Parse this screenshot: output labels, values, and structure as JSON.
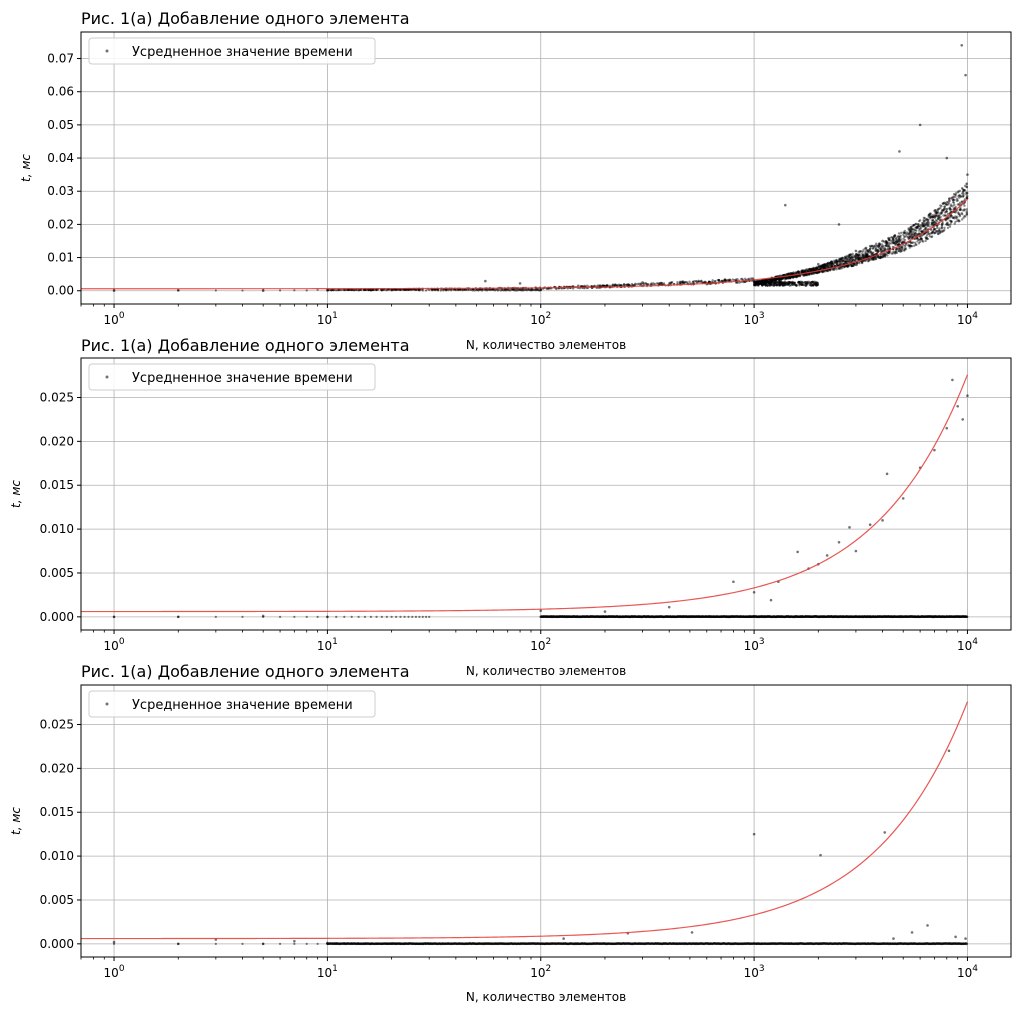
{
  "figure": {
    "charts_count": 3
  },
  "chart_data": [
    {
      "type": "scatter",
      "title": "Рис. 1(а) Добавление одного элемента",
      "xlabel": "N, количество элементов",
      "ylabel": "t, мс",
      "xscale": "log",
      "xlim": [
        0.7,
        16000
      ],
      "ylim": [
        -0.004,
        0.078
      ],
      "x_ticks": [
        1,
        10,
        100,
        1000,
        10000
      ],
      "x_tick_labels": [
        "10^0",
        "10^1",
        "10^2",
        "10^3",
        "10^4"
      ],
      "y_ticks": [
        0.0,
        0.01,
        0.02,
        0.03,
        0.04,
        0.05,
        0.06,
        0.07
      ],
      "y_tick_labels": [
        "0.00",
        "0.01",
        "0.02",
        "0.03",
        "0.04",
        "0.05",
        "0.06",
        "0.07"
      ],
      "grid": true,
      "legend": {
        "placement": "top-left",
        "entries": [
          "Усредненное значение времени"
        ]
      },
      "series": [
        {
          "name": "Усредненное значение времени",
          "kind": "scatter",
          "color": "#000000",
          "sample_points": [
            [
              1,
              0.0
            ],
            [
              2,
              0.0001
            ],
            [
              5,
              0.0
            ],
            [
              10,
              0.0001
            ],
            [
              20,
              0.0002
            ],
            [
              55,
              0.0029
            ],
            [
              80,
              0.0022
            ],
            [
              100,
              0.0003
            ],
            [
              150,
              0.0015
            ],
            [
              300,
              0.0025
            ],
            [
              600,
              0.002
            ],
            [
              1000,
              0.003
            ],
            [
              1400,
              0.0258
            ],
            [
              2000,
              0.008
            ],
            [
              2500,
              0.02
            ],
            [
              3000,
              0.012
            ],
            [
              4000,
              0.015
            ],
            [
              4800,
              0.042
            ],
            [
              6000,
              0.05
            ],
            [
              8000,
              0.04
            ],
            [
              9400,
              0.074
            ],
            [
              9800,
              0.065
            ],
            [
              10000,
              0.035
            ]
          ],
          "band": {
            "x": [
              10,
              100,
              200,
              500,
              1000,
              1000,
              2000,
              3000,
              5000,
              7000,
              10000
            ],
            "center": [
              0.0002,
              0.0006,
              0.0012,
              0.0022,
              0.003,
              0.002,
              0.006,
              0.009,
              0.014,
              0.019,
              0.026
            ],
            "spread": [
              0.0001,
              0.0006,
              0.0008,
              0.001,
              0.0012,
              0.001,
              0.002,
              0.004,
              0.006,
              0.008,
              0.01
            ]
          }
        },
        {
          "name": "",
          "kind": "line",
          "color": "#e53935",
          "fit": {
            "intercept": 0.0006,
            "slope": 2.7e-06
          }
        }
      ]
    },
    {
      "type": "scatter",
      "title": "Рис. 1(а) Добавление одного элемента",
      "xlabel": "N, количество элементов",
      "ylabel": "t, мс",
      "xscale": "log",
      "xlim": [
        0.7,
        16000
      ],
      "ylim": [
        -0.0015,
        0.0295
      ],
      "x_ticks": [
        1,
        10,
        100,
        1000,
        10000
      ],
      "x_tick_labels": [
        "10^0",
        "10^1",
        "10^2",
        "10^3",
        "10^4"
      ],
      "y_ticks": [
        0.0,
        0.005,
        0.01,
        0.015,
        0.02,
        0.025
      ],
      "y_tick_labels": [
        "0.000",
        "0.005",
        "0.010",
        "0.015",
        "0.020",
        "0.025"
      ],
      "grid": true,
      "legend": {
        "placement": "top-left",
        "entries": [
          "Усредненное значение времени"
        ]
      },
      "series": [
        {
          "name": "Усредненное значение времени",
          "kind": "scatter",
          "color": "#000000",
          "sample_points": [
            [
              1,
              0.0
            ],
            [
              2,
              0.0
            ],
            [
              5,
              0.0001
            ],
            [
              10,
              0.0
            ],
            [
              100,
              0.0007
            ],
            [
              200,
              0.0006
            ],
            [
              400,
              0.0011
            ],
            [
              800,
              0.004
            ],
            [
              1000,
              0.0028
            ],
            [
              1200,
              0.0019
            ],
            [
              1300,
              0.004
            ],
            [
              1600,
              0.0074
            ],
            [
              1800,
              0.0055
            ],
            [
              2000,
              0.006
            ],
            [
              2200,
              0.007
            ],
            [
              2500,
              0.0085
            ],
            [
              2800,
              0.0102
            ],
            [
              3000,
              0.0075
            ],
            [
              3500,
              0.0105
            ],
            [
              4000,
              0.011
            ],
            [
              4200,
              0.0163
            ],
            [
              5000,
              0.0135
            ],
            [
              6000,
              0.017
            ],
            [
              7000,
              0.019
            ],
            [
              8000,
              0.0215
            ],
            [
              8500,
              0.027
            ],
            [
              9000,
              0.024
            ],
            [
              9500,
              0.0225
            ],
            [
              10000,
              0.0252
            ]
          ],
          "baseline": {
            "from": 100,
            "to": 10000,
            "value": 0.0
          }
        },
        {
          "name": "",
          "kind": "line",
          "color": "#e53935",
          "fit": {
            "intercept": 0.0006,
            "slope": 2.7e-06
          }
        }
      ]
    },
    {
      "type": "scatter",
      "title": "Рис. 1(а) Добавление одного элемента",
      "xlabel": "N, количество элементов",
      "ylabel": "t, мс",
      "xscale": "log",
      "xlim": [
        0.7,
        16000
      ],
      "ylim": [
        -0.0015,
        0.0295
      ],
      "x_ticks": [
        1,
        10,
        100,
        1000,
        10000
      ],
      "x_tick_labels": [
        "10^0",
        "10^1",
        "10^2",
        "10^3",
        "10^4"
      ],
      "y_ticks": [
        0.0,
        0.005,
        0.01,
        0.015,
        0.02,
        0.025
      ],
      "y_tick_labels": [
        "0.000",
        "0.005",
        "0.010",
        "0.015",
        "0.020",
        "0.025"
      ],
      "grid": true,
      "legend": {
        "placement": "top-left",
        "entries": [
          "Усредненное значение времени"
        ]
      },
      "series": [
        {
          "name": "Усредненное значение времени",
          "kind": "scatter",
          "color": "#000000",
          "sample_points": [
            [
              1,
              0.0002
            ],
            [
              2,
              0.0
            ],
            [
              3,
              0.0005
            ],
            [
              5,
              0.0
            ],
            [
              7,
              0.0003
            ],
            [
              10,
              0.0001
            ],
            [
              128,
              0.0006
            ],
            [
              256,
              0.0012
            ],
            [
              512,
              0.0013
            ],
            [
              1000,
              0.0125
            ],
            [
              2048,
              0.0101
            ],
            [
              4096,
              0.0127
            ],
            [
              4500,
              0.0006
            ],
            [
              5500,
              0.0013
            ],
            [
              6500,
              0.0021
            ],
            [
              8192,
              0.022
            ],
            [
              8800,
              0.0008
            ],
            [
              9800,
              0.0006
            ]
          ],
          "baseline": {
            "from": 10,
            "to": 10000,
            "value": 0.0
          }
        },
        {
          "name": "",
          "kind": "line",
          "color": "#e53935",
          "fit": {
            "intercept": 0.0006,
            "slope": 2.7e-06
          }
        }
      ]
    }
  ]
}
